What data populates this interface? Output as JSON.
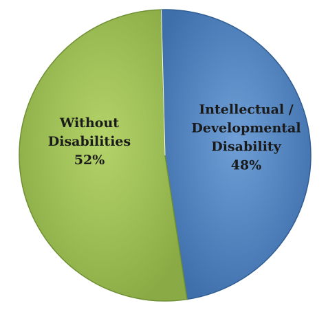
{
  "chart_data": {
    "type": "pie",
    "title": "",
    "start_angle_deg": 0,
    "slices": [
      {
        "name": "Intellectual / Developmental Disability",
        "value": 48,
        "value_label": "48%",
        "label_lines": [
          "Intellectual /",
          "Developmental",
          "Disability"
        ],
        "color": "#4f81bd",
        "color_dark": "#2f5d93"
      },
      {
        "name": "Without Disabilities",
        "value": 52,
        "value_label": "52%",
        "label_lines": [
          "Without",
          "Disabilities"
        ],
        "color": "#9bbb59",
        "color_dark": "#6e8f33"
      }
    ],
    "legend": "none",
    "data_labels": "inside"
  }
}
